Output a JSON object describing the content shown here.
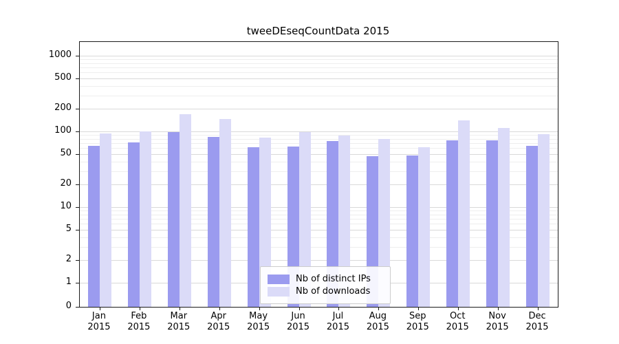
{
  "chart_data": {
    "type": "bar",
    "title": "tweeDEseqCountData 2015",
    "categories": [
      "Jan",
      "Feb",
      "Mar",
      "Apr",
      "May",
      "Jun",
      "Jul",
      "Aug",
      "Sep",
      "Oct",
      "Nov",
      "Dec"
    ],
    "x_sublabel": "2015",
    "series": [
      {
        "name": "Nb of distinct IPs",
        "color": "#9b9bef",
        "values": [
          65,
          72,
          97,
          85,
          62,
          63,
          75,
          47,
          48,
          77,
          77,
          65
        ]
      },
      {
        "name": "Nb of downloads",
        "color": "#dbdbf8",
        "values": [
          93,
          100,
          170,
          145,
          83,
          97,
          88,
          79,
          62,
          140,
          110,
          92
        ]
      }
    ],
    "y_scale": "symlog",
    "y_ticks": [
      0,
      1,
      2,
      5,
      10,
      20,
      50,
      100,
      200,
      500,
      1000
    ],
    "y_minor_ticks": [
      3,
      4,
      6,
      7,
      8,
      9,
      30,
      40,
      60,
      70,
      80,
      90,
      300,
      400,
      600,
      700,
      800,
      900
    ],
    "ylim": [
      0,
      1000
    ],
    "grid": true,
    "legend_position": "inside-bottom-center"
  }
}
